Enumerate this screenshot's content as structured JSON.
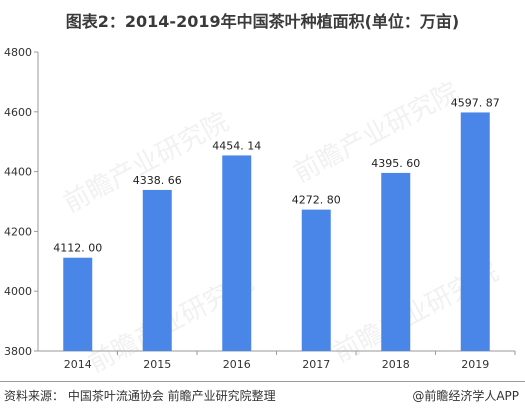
{
  "page": {
    "title": "图表2：2014-2019年中国茶叶种植面积(单位：万亩)",
    "source": "资料来源： 中国茶叶流通协会 前瞻产业研究院整理",
    "brand": "@前瞻经济学人APP",
    "watermark": "前瞻产业研究院",
    "colors": {
      "bar": "#4a86e8",
      "text": "#333333",
      "axis": "#9a9a9a"
    }
  },
  "chart_data": {
    "type": "bar",
    "title": "图表2：2014-2019年中国茶叶种植面积(单位：万亩)",
    "xlabel": "",
    "ylabel": "",
    "categories": [
      "2014",
      "2015",
      "2016",
      "2017",
      "2018",
      "2019"
    ],
    "x_tick_labels": [
      "2014",
      "2015",
      "2016",
      "2017",
      "2018",
      "2019"
    ],
    "values": [
      4112.0,
      4338.66,
      4454.14,
      4272.8,
      4395.6,
      4597.87
    ],
    "data_labels": [
      "4112. 00",
      "4338. 66",
      "4454. 14",
      "4272. 80",
      "4395. 60",
      "4597. 87"
    ],
    "ylim": [
      3800,
      4800
    ],
    "yticks": [
      3800,
      4000,
      4200,
      4400,
      4600,
      4800
    ],
    "y_tick_labels": [
      "3800",
      "4000",
      "4200",
      "4400",
      "4600",
      "4800"
    ],
    "grid": false,
    "legend": "none"
  }
}
